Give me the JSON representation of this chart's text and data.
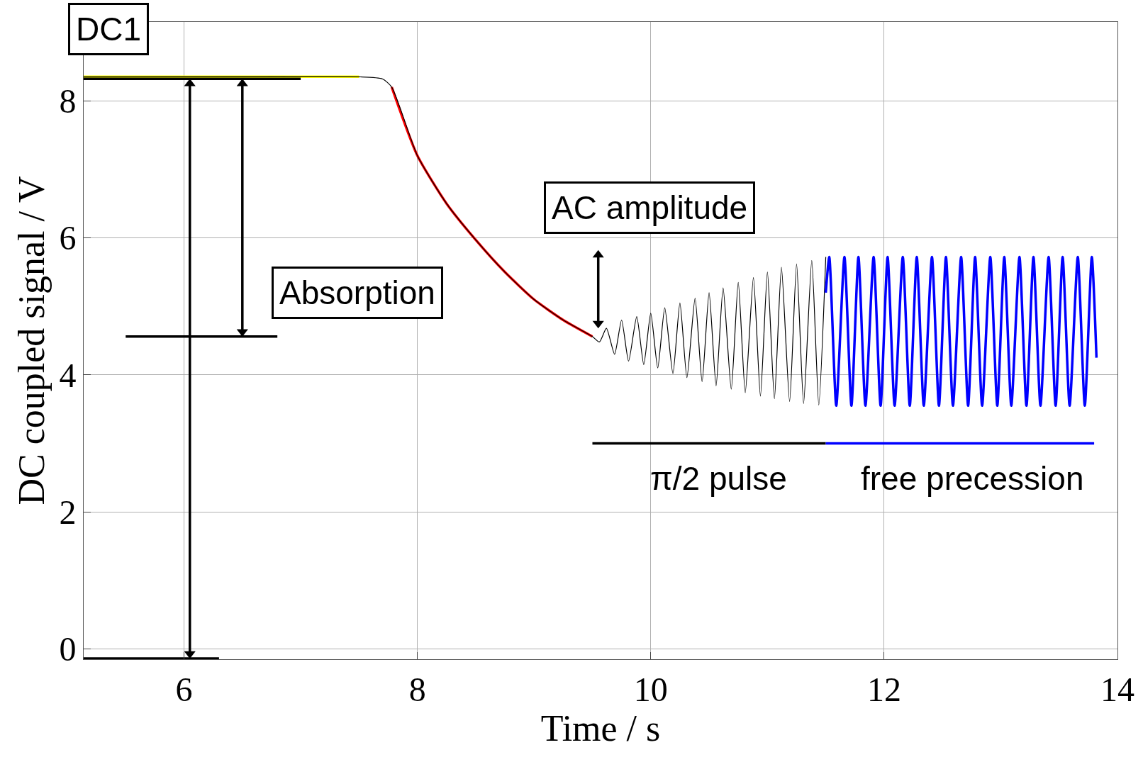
{
  "chart_data": {
    "type": "line",
    "xlabel": "Time / s",
    "ylabel": "DC coupled signal / V",
    "xlim": [
      5.14,
      14.0
    ],
    "ylim": [
      -0.15,
      9.15
    ],
    "xticks": [
      6,
      8,
      10,
      12,
      14
    ],
    "yticks": [
      0,
      2,
      4,
      6,
      8
    ],
    "grid": true,
    "marker": "none",
    "line_style": "solid",
    "series": [
      {
        "color": "#ffff00",
        "x": [
          5.14,
          7.5
        ],
        "values": [
          8.35,
          8.35
        ]
      },
      {
        "color": "#ff0000",
        "x": [
          7.78,
          8.0,
          8.25,
          8.5,
          8.75,
          9.0,
          9.25,
          9.5
        ],
        "values": [
          8.2,
          7.2,
          6.5,
          5.97,
          5.5,
          5.1,
          4.8,
          4.56
        ]
      },
      {
        "color": "#000000",
        "x": [
          5.14,
          7.5,
          7.7,
          7.78,
          8.0,
          8.25,
          8.5,
          8.75,
          9.0,
          9.25,
          9.5,
          9.56,
          9.62,
          9.69,
          9.75,
          9.81,
          9.88,
          9.94,
          10.0,
          10.06,
          10.12,
          10.19,
          10.25,
          10.31,
          10.38,
          10.44,
          10.5,
          10.56,
          10.62,
          10.69,
          10.75,
          10.81,
          10.88,
          10.94,
          11.0,
          11.06,
          11.12,
          11.19,
          11.25,
          11.31,
          11.38,
          11.44,
          11.5
        ],
        "values": [
          8.35,
          8.35,
          8.32,
          8.2,
          7.2,
          6.5,
          5.97,
          5.5,
          5.1,
          4.8,
          4.56,
          4.48,
          4.68,
          4.3,
          4.8,
          4.2,
          4.85,
          4.15,
          4.9,
          4.1,
          4.98,
          4.02,
          5.05,
          3.96,
          5.12,
          3.9,
          5.2,
          3.84,
          5.27,
          3.79,
          5.35,
          3.74,
          5.42,
          3.69,
          5.5,
          3.65,
          5.57,
          3.61,
          5.62,
          3.58,
          5.67,
          3.56,
          5.72
        ]
      },
      {
        "color": "#0000ff",
        "x": [
          11.5,
          11.53,
          11.59,
          11.66,
          11.72,
          11.78,
          11.84,
          11.91,
          11.97,
          12.03,
          12.09,
          12.16,
          12.22,
          12.28,
          12.34,
          12.41,
          12.47,
          12.53,
          12.59,
          12.66,
          12.72,
          12.78,
          12.84,
          12.91,
          12.97,
          13.03,
          13.09,
          13.16,
          13.22,
          13.28,
          13.34,
          13.41,
          13.47,
          13.53,
          13.59,
          13.66,
          13.72,
          13.78,
          13.82
        ],
        "values": [
          5.2,
          5.72,
          3.55,
          5.72,
          3.55,
          5.72,
          3.55,
          5.72,
          3.55,
          5.72,
          3.55,
          5.72,
          3.55,
          5.72,
          3.55,
          5.72,
          3.55,
          5.72,
          3.55,
          5.72,
          3.55,
          5.72,
          3.55,
          5.72,
          3.55,
          5.72,
          3.55,
          5.72,
          3.55,
          5.72,
          3.55,
          5.72,
          3.55,
          5.72,
          3.55,
          5.72,
          3.55,
          5.72,
          4.25
        ]
      },
      {
        "color": "#000000",
        "x": [
          5.14,
          7.0
        ],
        "values": [
          8.32,
          8.32
        ]
      },
      {
        "color": "#000000",
        "x": [
          5.5,
          6.8
        ],
        "values": [
          4.56,
          4.56
        ]
      },
      {
        "color": "#000000",
        "x": [
          5.14,
          6.3
        ],
        "values": [
          -0.14,
          -0.14
        ]
      },
      {
        "color": "#000000",
        "x": [
          9.5,
          11.5
        ],
        "values": [
          3.0,
          3.0
        ]
      },
      {
        "color": "#0000ff",
        "x": [
          11.5,
          13.8
        ],
        "values": [
          3.0,
          3.0
        ]
      },
      {
        "color": "#000000",
        "x": [
          6.05,
          6.05
        ],
        "values": [
          8.25,
          -0.07
        ],
        "marker": "triangle"
      },
      {
        "color": "#000000",
        "x": [
          6.5,
          6.5
        ],
        "values": [
          8.25,
          4.63
        ],
        "marker": "triangle"
      },
      {
        "color": "#000000",
        "x": [
          9.55,
          9.55
        ],
        "values": [
          5.75,
          4.75
        ],
        "marker": "triangle"
      }
    ],
    "annotations": [
      "DC1",
      "Absorption",
      "AC amplitude",
      "π/2 pulse",
      "free precession"
    ]
  }
}
